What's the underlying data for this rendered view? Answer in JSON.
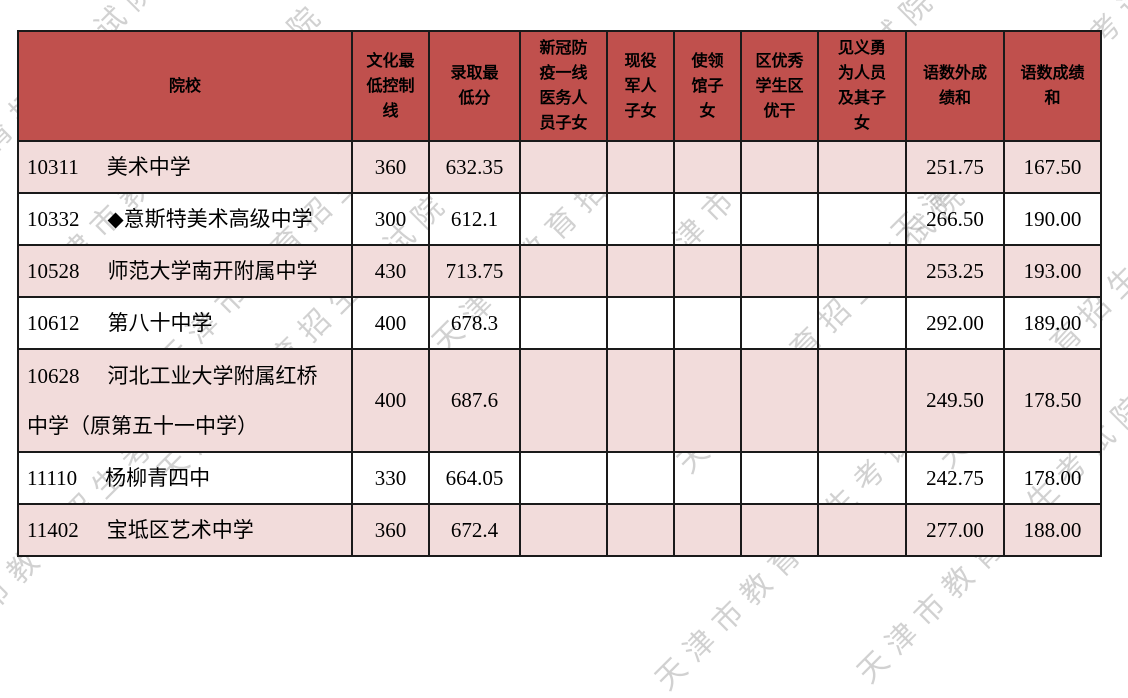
{
  "watermark": {
    "text": "天津市教育招生考试院"
  },
  "table": {
    "headers": [
      "院校",
      "文化最低控制线",
      "录取最低分",
      "新冠防疫一线医务人员子女",
      "现役军人子女",
      "使领馆子女",
      "区优秀学生区优干",
      "见义勇为人员及其子女",
      "语数外成绩和",
      "语数成绩和"
    ],
    "rows": [
      {
        "code": "10311",
        "name": "美术中学",
        "min_control_line": "360",
        "min_admission_score": "632.35",
        "covid_frontline_children": "",
        "military_children": "",
        "embassy_children": "",
        "district_outstanding": "",
        "bravery_children": "",
        "chn_math_eng_sum": "251.75",
        "chn_math_sum": "167.50"
      },
      {
        "code": "10332",
        "name": "◆意斯特美术高级中学",
        "min_control_line": "300",
        "min_admission_score": "612.1",
        "covid_frontline_children": "",
        "military_children": "",
        "embassy_children": "",
        "district_outstanding": "",
        "bravery_children": "",
        "chn_math_eng_sum": "266.50",
        "chn_math_sum": "190.00"
      },
      {
        "code": "10528",
        "name": "师范大学南开附属中学",
        "min_control_line": "430",
        "min_admission_score": "713.75",
        "covid_frontline_children": "",
        "military_children": "",
        "embassy_children": "",
        "district_outstanding": "",
        "bravery_children": "",
        "chn_math_eng_sum": "253.25",
        "chn_math_sum": "193.00"
      },
      {
        "code": "10612",
        "name": "第八十中学",
        "min_control_line": "400",
        "min_admission_score": "678.3",
        "covid_frontline_children": "",
        "military_children": "",
        "embassy_children": "",
        "district_outstanding": "",
        "bravery_children": "",
        "chn_math_eng_sum": "292.00",
        "chn_math_sum": "189.00"
      },
      {
        "code": "10628",
        "name": "河北工业大学附属红桥中学（原第五十一中学）",
        "min_control_line": "400",
        "min_admission_score": "687.6",
        "covid_frontline_children": "",
        "military_children": "",
        "embassy_children": "",
        "district_outstanding": "",
        "bravery_children": "",
        "chn_math_eng_sum": "249.50",
        "chn_math_sum": "178.50"
      },
      {
        "code": "11110",
        "name": "杨柳青四中",
        "min_control_line": "330",
        "min_admission_score": "664.05",
        "covid_frontline_children": "",
        "military_children": "",
        "embassy_children": "",
        "district_outstanding": "",
        "bravery_children": "",
        "chn_math_eng_sum": "242.75",
        "chn_math_sum": "178.00"
      },
      {
        "code": "11402",
        "name": "宝坻区艺术中学",
        "min_control_line": "360",
        "min_admission_score": "672.4",
        "covid_frontline_children": "",
        "military_children": "",
        "embassy_children": "",
        "district_outstanding": "",
        "bravery_children": "",
        "chn_math_eng_sum": "277.00",
        "chn_math_sum": "188.00"
      }
    ]
  },
  "colors": {
    "header_bg": "#c0504d",
    "row_alt_bg": "#f2dcdb",
    "border": "#1a1a1a",
    "watermark": "#9b9b9b"
  }
}
